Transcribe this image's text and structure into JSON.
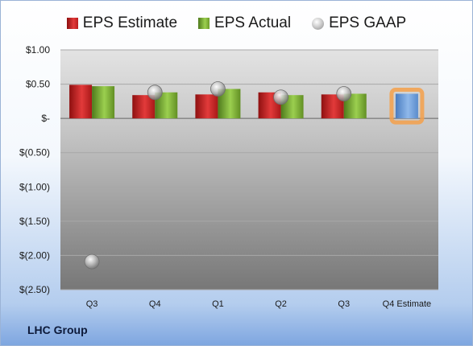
{
  "legend": {
    "estimate": "EPS Estimate",
    "actual": "EPS Actual",
    "gaap": "EPS GAAP"
  },
  "footer": "LHC Group",
  "colors": {
    "estimate": "#c42020",
    "actual": "#7fb13a",
    "gaap": "#b0b0b0",
    "forecast": "#6f9fd8",
    "forecast_glow": "#f5a04a"
  },
  "chart_data": {
    "type": "bar",
    "categories": [
      "Q3",
      "Q4",
      "Q1",
      "Q2",
      "Q3",
      "Q4 Estimate"
    ],
    "y_tick_labels": [
      "$1.00",
      "$0.50",
      "$-",
      "$(0.50)",
      "$(1.00)",
      "$(1.50)",
      "$(2.00)",
      "$(2.50)"
    ],
    "y_ticks": [
      1.0,
      0.5,
      0,
      -0.5,
      -1.0,
      -1.5,
      -2.0,
      -2.5
    ],
    "ylim": [
      -2.5,
      1.0
    ],
    "series": [
      {
        "name": "EPS Estimate",
        "values": [
          0.49,
          0.34,
          0.35,
          0.38,
          0.35,
          null
        ]
      },
      {
        "name": "EPS Actual",
        "values": [
          0.47,
          0.38,
          0.43,
          0.34,
          0.36,
          null
        ]
      },
      {
        "name": "EPS GAAP",
        "values": [
          -2.09,
          0.38,
          0.43,
          0.31,
          0.36,
          null
        ]
      }
    ],
    "forecast": {
      "category": "Q4 Estimate",
      "value": 0.36
    },
    "grid": true,
    "legend_position": "top"
  }
}
